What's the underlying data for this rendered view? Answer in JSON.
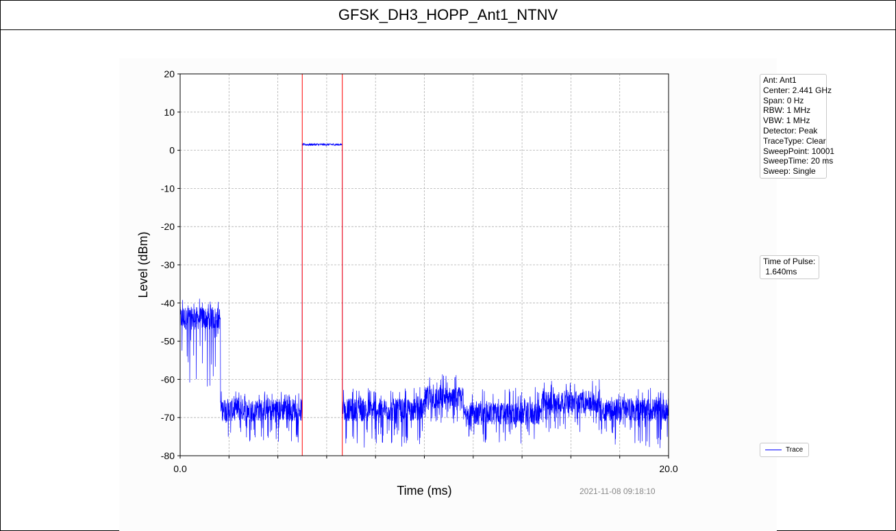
{
  "page": {
    "title": "GFSK_DH3_HOPP_Ant1_NTNV"
  },
  "chart_data": {
    "type": "line",
    "title": "",
    "xlabel": "Time (ms)",
    "ylabel": "Level (dBm)",
    "xlim": [
      0.0,
      20.0
    ],
    "ylim": [
      -80,
      20
    ],
    "x_tick_labels": [
      "0.0",
      "20.0"
    ],
    "x_minor_ticks": [
      2,
      4,
      6,
      8,
      10,
      12,
      14,
      16,
      18
    ],
    "y_ticks": [
      20,
      10,
      0,
      -10,
      -20,
      -30,
      -40,
      -50,
      -60,
      -70,
      -80
    ],
    "grid": true,
    "legend_placement": "bottom-right, outside plot",
    "series": [
      {
        "name": "Trace",
        "color": "#0000ff",
        "description_segments": [
          {
            "x_start": 0.0,
            "x_end": 1.65,
            "mean": -44,
            "floor": -62,
            "peak": -38.5
          },
          {
            "x_start": 1.65,
            "x_end": 5.0,
            "mean": -68,
            "floor": -77,
            "peak": -63
          },
          {
            "x_start": 5.0,
            "x_end": 6.64,
            "mean": 1.5,
            "floor": 1.2,
            "peak": 1.8
          },
          {
            "x_start": 6.64,
            "x_end": 10.0,
            "mean": -68,
            "floor": -78,
            "peak": -62
          },
          {
            "x_start": 10.0,
            "x_end": 11.6,
            "mean": -65,
            "floor": -72,
            "peak": -58.5
          },
          {
            "x_start": 11.6,
            "x_end": 14.8,
            "mean": -69,
            "floor": -77,
            "peak": -62
          },
          {
            "x_start": 14.8,
            "x_end": 17.2,
            "mean": -66,
            "floor": -74,
            "peak": -60
          },
          {
            "x_start": 17.2,
            "x_end": 20.0,
            "mean": -68,
            "floor": -78,
            "peak": -62
          }
        ]
      }
    ],
    "markers": [
      {
        "x": 5.0,
        "color": "#ff0000"
      },
      {
        "x": 6.64,
        "color": "#ff0000"
      }
    ],
    "settings_lines": [
      "Ant: Ant1",
      "Center: 2.441 GHz",
      "Span: 0 Hz",
      "RBW: 1 MHz",
      "VBW: 1 MHz",
      "Detector: Peak",
      "TraceType: Clear",
      "SweepPoint: 10001",
      "SweepTime: 20 ms",
      "Sweep: Single"
    ],
    "pulse_label": "Time of Pulse:",
    "pulse_value": " 1.640ms",
    "legend_label": "Trace",
    "timestamp": "2021-11-08 09:18:10"
  }
}
